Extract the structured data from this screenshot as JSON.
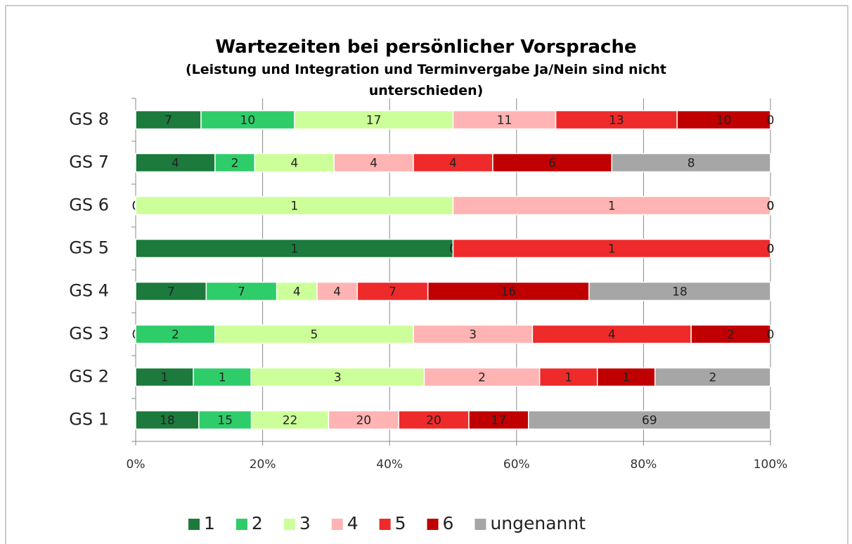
{
  "chart_data": {
    "type": "stacked_bar_100_horizontal",
    "title": "Wartezeiten bei persönlicher Vorsprache",
    "subtitle": "(Leistung und Integration und Terminvergabe Ja/Nein sind nicht unterschieden)",
    "categories": [
      "GS 1",
      "GS 2",
      "GS 3",
      "GS 4",
      "GS 5",
      "GS 6",
      "GS 7",
      "GS 8"
    ],
    "series": [
      {
        "name": "1",
        "color": "#1b7a3c",
        "values": [
          18,
          1,
          0,
          7,
          1,
          0,
          4,
          7
        ]
      },
      {
        "name": "2",
        "color": "#2fcc6a",
        "values": [
          15,
          1,
          2,
          7,
          0,
          0,
          2,
          10
        ]
      },
      {
        "name": "3",
        "color": "#ccff99",
        "values": [
          22,
          3,
          5,
          4,
          0,
          1,
          4,
          17
        ]
      },
      {
        "name": "4",
        "color": "#ffb3b3",
        "values": [
          20,
          2,
          3,
          4,
          0,
          1,
          4,
          11
        ]
      },
      {
        "name": "5",
        "color": "#ee2a2a",
        "values": [
          20,
          1,
          4,
          7,
          1,
          0,
          4,
          13
        ]
      },
      {
        "name": "6",
        "color": "#c00000",
        "values": [
          17,
          1,
          2,
          16,
          0,
          0,
          6,
          10
        ]
      },
      {
        "name": "ungenannt",
        "color": "#a6a6a6",
        "values": [
          69,
          2,
          0,
          18,
          0,
          0,
          8,
          0
        ]
      }
    ],
    "xlim": [
      0,
      100
    ],
    "xticks": [
      {
        "value": 0,
        "label": "0%"
      },
      {
        "value": 20,
        "label": "20%"
      },
      {
        "value": 40,
        "label": "40%"
      },
      {
        "value": 60,
        "label": "60%"
      },
      {
        "value": 80,
        "label": "80%"
      },
      {
        "value": 100,
        "label": "100%"
      }
    ],
    "grid": true,
    "legend": "bottom"
  }
}
